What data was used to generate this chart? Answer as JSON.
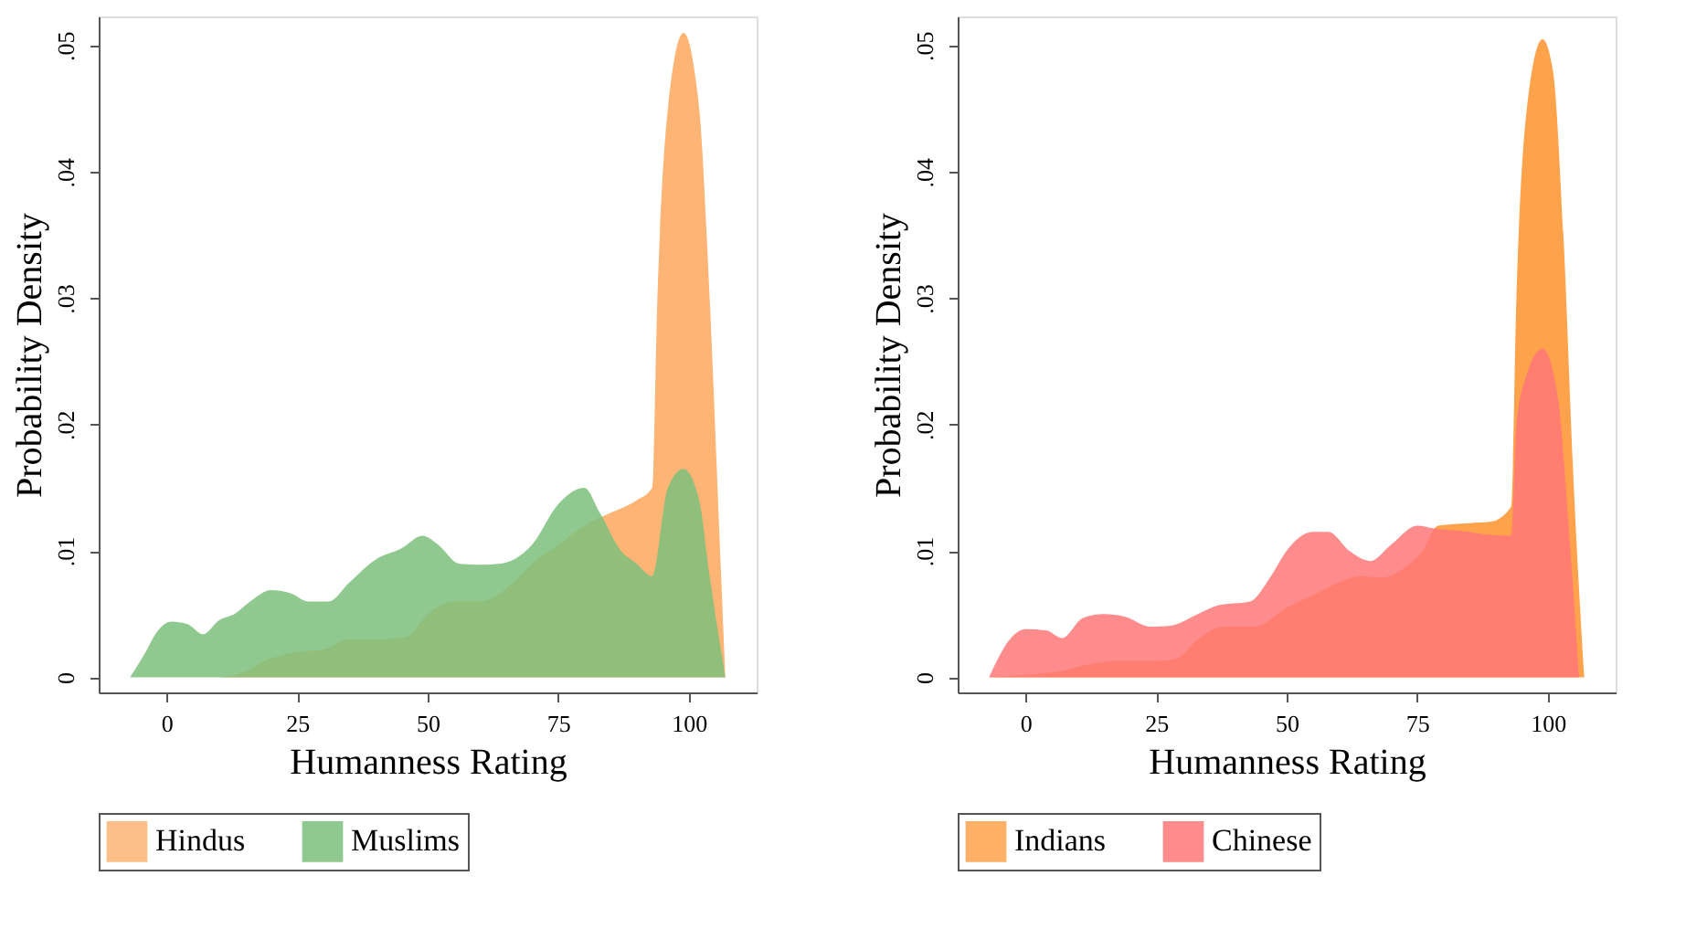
{
  "chart_data": [
    {
      "type": "area",
      "xlabel": "Humanness Rating",
      "ylabel": "Probability Density",
      "xlim": [
        -13,
        113
      ],
      "ylim": [
        -0.0012,
        0.0523
      ],
      "xticks": [
        0,
        25,
        50,
        75,
        100
      ],
      "yticks": [
        0,
        {
          "value": 0.01,
          "label": ".01"
        },
        {
          "value": 0.02,
          "label": ".02"
        },
        {
          "value": 0.03,
          "label": ".03"
        },
        {
          "value": 0.04,
          "label": ".04"
        },
        {
          "value": 0.05,
          "label": ".05"
        }
      ],
      "grid": false,
      "legend": "bottom",
      "series": [
        {
          "name": "Hindus",
          "color": "#fdb474",
          "x": [
            -7,
            10,
            14,
            20,
            25,
            30,
            35,
            40,
            46,
            50,
            55,
            60,
            65,
            70,
            75,
            80,
            85,
            90,
            93,
            94,
            96,
            99,
            102,
            104,
            106,
            107
          ],
          "values": [
            0,
            0,
            0.0003,
            0.0015,
            0.002,
            0.0022,
            0.003,
            0.003,
            0.0032,
            0.005,
            0.006,
            0.006,
            0.007,
            0.009,
            0.0105,
            0.012,
            0.013,
            0.014,
            0.015,
            0.03,
            0.045,
            0.051,
            0.045,
            0.03,
            0.01,
            0
          ]
        },
        {
          "name": "Muslims",
          "color": "#7cc07c",
          "x": [
            -7,
            -4,
            -2,
            1,
            4,
            7,
            10,
            13,
            16,
            20,
            24,
            27,
            31,
            35,
            40,
            45,
            49,
            52,
            56,
            60,
            64,
            70,
            75,
            80,
            83,
            87,
            90,
            93,
            96,
            99,
            102,
            104,
            107
          ],
          "values": [
            0,
            0.002,
            0.0035,
            0.0044,
            0.0042,
            0.0034,
            0.0045,
            0.005,
            0.006,
            0.0069,
            0.0066,
            0.006,
            0.006,
            0.0075,
            0.0093,
            0.0102,
            0.0112,
            0.0105,
            0.009,
            0.0089,
            0.009,
            0.0105,
            0.0137,
            0.015,
            0.013,
            0.01,
            0.009,
            0.008,
            0.015,
            0.0165,
            0.014,
            0.008,
            0
          ]
        }
      ]
    },
    {
      "type": "area",
      "xlabel": "Humanness Rating",
      "ylabel": "Probability Density",
      "xlim": [
        -13,
        113
      ],
      "ylim": [
        -0.0012,
        0.0523
      ],
      "xticks": [
        0,
        25,
        50,
        75,
        100
      ],
      "yticks": [
        0,
        {
          "value": 0.01,
          "label": ".01"
        },
        {
          "value": 0.02,
          "label": ".02"
        },
        {
          "value": 0.03,
          "label": ".03"
        },
        {
          "value": 0.04,
          "label": ".04"
        },
        {
          "value": 0.05,
          "label": ".05"
        }
      ],
      "grid": false,
      "legend": "bottom",
      "series": [
        {
          "name": "Indians",
          "color": "#ffa24c",
          "x": [
            -7,
            0,
            7,
            12,
            17,
            25,
            29,
            33,
            38,
            44,
            50,
            55,
            60,
            64,
            68,
            72,
            76,
            79,
            85,
            89,
            93,
            94,
            96,
            99,
            101,
            103,
            105,
            107
          ],
          "values": [
            0,
            0.0002,
            0.0005,
            0.001,
            0.0013,
            0.0013,
            0.0015,
            0.003,
            0.004,
            0.004,
            0.0055,
            0.0065,
            0.0075,
            0.008,
            0.0079,
            0.0085,
            0.01,
            0.012,
            0.0122,
            0.0123,
            0.0135,
            0.03,
            0.045,
            0.0505,
            0.048,
            0.035,
            0.015,
            0
          ]
        },
        {
          "name": "Chinese",
          "color": "#ff7878",
          "x": [
            -7,
            -3,
            0,
            4,
            7,
            11,
            15,
            19,
            24,
            28,
            33,
            37,
            43,
            47,
            50,
            55,
            58,
            62,
            66,
            70,
            75,
            78,
            85,
            88,
            93,
            94,
            96,
            99,
            102,
            104,
            106
          ],
          "values": [
            0,
            0.003,
            0.0038,
            0.0037,
            0.0031,
            0.0047,
            0.005,
            0.0048,
            0.004,
            0.0041,
            0.005,
            0.0057,
            0.006,
            0.008,
            0.01,
            0.0115,
            0.0115,
            0.01,
            0.0092,
            0.0105,
            0.012,
            0.0118,
            0.0115,
            0.0113,
            0.0112,
            0.02,
            0.024,
            0.026,
            0.022,
            0.012,
            0
          ]
        }
      ]
    }
  ]
}
